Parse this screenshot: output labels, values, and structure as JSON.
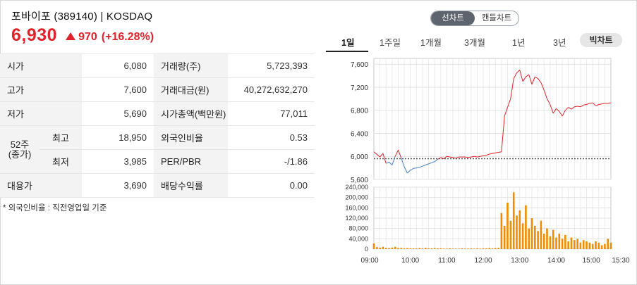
{
  "stock": {
    "name": "포바이포",
    "code": "(389140)",
    "market": "KOSDAQ",
    "price": "6,930",
    "change": "970",
    "change_pct": "(+16.28%)",
    "direction": "up",
    "color_up": "#e0222a"
  },
  "info_table": {
    "open_label": "시가",
    "open_value": "6,080",
    "high_label": "고가",
    "high_value": "7,600",
    "low_label": "저가",
    "low_value": "5,690",
    "w52_label_1": "52주",
    "w52_label_2": "(종가)",
    "w52_high_label": "최고",
    "w52_high_value": "18,950",
    "w52_low_label": "최저",
    "w52_low_value": "3,985",
    "limit_label": "대용가",
    "limit_value": "3,690",
    "volume_label": "거래량(주)",
    "volume_value": "5,723,393",
    "amount_label": "거래대금(원)",
    "amount_value": "40,272,632,270",
    "mktcap_label": "시가총액(백만원)",
    "mktcap_value": "77,011",
    "foreign_label": "외국인비율",
    "foreign_value": "0.53",
    "per_label": "PER/PBR",
    "per_value": "-/1.86",
    "div_label": "배당수익률",
    "div_value": "0.00"
  },
  "note": "* 외국인비율 : 직전영업일 기준",
  "chart_toggle": {
    "line": "선차트",
    "candle": "캔들차트",
    "selected": "선차트"
  },
  "period_tabs": [
    "1일",
    "1주일",
    "1개월",
    "3개월",
    "1년",
    "3년"
  ],
  "selected_tab": "1일",
  "big_chart_button": "빅차트",
  "chart_data": [
    {
      "type": "line",
      "name": "price",
      "ylim": [
        5600,
        7700
      ],
      "y_ticks": [
        "7,600",
        "7,200",
        "6,800",
        "6,400",
        "6,000",
        "5,600"
      ],
      "y_tick_values": [
        7600,
        7200,
        6800,
        6400,
        6000,
        5600
      ],
      "prev_close": 5960,
      "color_below": "#4a7fc1",
      "color_above": "#e0222a",
      "x_ticks": [
        "09:00",
        "10:00",
        "11:00",
        "12:00",
        "13:00",
        "14:00",
        "15:00",
        "15:30"
      ],
      "x_minutes": [
        0,
        10,
        15,
        20,
        25,
        30,
        35,
        40,
        45,
        50,
        55,
        60,
        65,
        70,
        75,
        80,
        85,
        90,
        95,
        100,
        105,
        110,
        115,
        120,
        125,
        130,
        135,
        140,
        145,
        150,
        155,
        160,
        165,
        170,
        175,
        180,
        185,
        190,
        195,
        200,
        205,
        210,
        215,
        220,
        225,
        230,
        235,
        240,
        245,
        250,
        255,
        260,
        265,
        270,
        275,
        280,
        285,
        290,
        295,
        300,
        305,
        310,
        315,
        320,
        325,
        330,
        335,
        340,
        345,
        350,
        355,
        360,
        365,
        370,
        375,
        380,
        385,
        390
      ],
      "values": [
        6080,
        5990,
        6050,
        5880,
        5900,
        5850,
        6000,
        6110,
        5970,
        5820,
        5710,
        5760,
        5790,
        5800,
        5810,
        5830,
        5850,
        5870,
        5890,
        5910,
        5950,
        5980,
        5960,
        6000,
        5990,
        5980,
        5970,
        5990,
        5990,
        5990,
        5980,
        5990,
        6000,
        5990,
        6000,
        6010,
        6020,
        6040,
        6050,
        6060,
        6070,
        6080,
        6700,
        6850,
        7000,
        7350,
        7450,
        7500,
        7300,
        7380,
        7420,
        7250,
        7380,
        7350,
        7280,
        7150,
        7000,
        6900,
        6750,
        6830,
        6780,
        6700,
        6800,
        6850,
        6820,
        6860,
        6870,
        6860,
        6890,
        6900,
        6920,
        6930,
        6880,
        6900,
        6910,
        6920,
        6920,
        6930
      ]
    },
    {
      "type": "bar",
      "name": "volume",
      "ylim": [
        0,
        240000
      ],
      "y_ticks": [
        "240,000",
        "200,000",
        "160,000",
        "120,000",
        "80,000",
        "40,000",
        "0"
      ],
      "y_tick_values": [
        240000,
        200000,
        160000,
        120000,
        80000,
        40000,
        0
      ],
      "color": "#f08c00",
      "x_minutes": [
        0,
        5,
        10,
        15,
        20,
        25,
        30,
        35,
        40,
        45,
        50,
        55,
        60,
        65,
        70,
        75,
        80,
        85,
        90,
        95,
        100,
        105,
        110,
        115,
        120,
        125,
        130,
        135,
        140,
        145,
        150,
        155,
        160,
        165,
        170,
        175,
        180,
        185,
        190,
        195,
        200,
        205,
        210,
        215,
        220,
        225,
        230,
        235,
        240,
        245,
        250,
        255,
        260,
        265,
        270,
        275,
        280,
        285,
        290,
        295,
        300,
        305,
        310,
        315,
        320,
        325,
        330,
        335,
        340,
        345,
        350,
        355,
        360,
        365,
        370,
        375,
        380,
        385,
        390
      ],
      "values": [
        22000,
        8000,
        6000,
        9000,
        5000,
        4000,
        6000,
        9000,
        4000,
        5000,
        3000,
        4000,
        3000,
        3000,
        3000,
        4000,
        3000,
        5000,
        3000,
        3000,
        4000,
        3000,
        3000,
        2000,
        2000,
        3000,
        2000,
        2000,
        2000,
        3000,
        2000,
        2000,
        3000,
        2000,
        3000,
        2000,
        3000,
        3000,
        4000,
        3000,
        4000,
        5000,
        140000,
        90000,
        180000,
        110000,
        220000,
        130000,
        150000,
        100000,
        170000,
        80000,
        120000,
        90000,
        70000,
        110000,
        60000,
        80000,
        50000,
        75000,
        45000,
        60000,
        40000,
        55000,
        30000,
        45000,
        35000,
        40000,
        25000,
        35000,
        30000,
        25000,
        20000,
        30000,
        25000,
        15000,
        20000,
        40000,
        25000
      ]
    }
  ]
}
